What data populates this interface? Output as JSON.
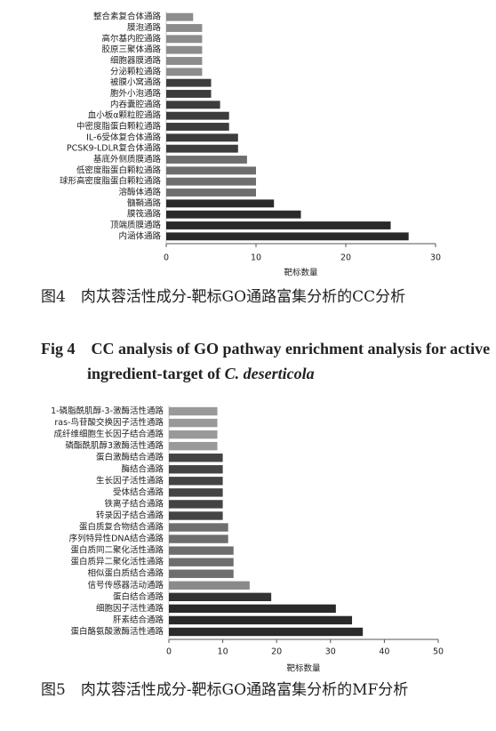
{
  "chart_data": [
    {
      "type": "bar",
      "orientation": "horizontal",
      "categories": [
        "整合素复合体通路",
        "膜泡通路",
        "高尔基内腔通路",
        "胶原三聚体通路",
        "细胞器膜通路",
        "分泌颗粒通路",
        "被膜小窝通路",
        "胞外小泡通路",
        "内吞囊腔通路",
        "血小板α颗粒腔通路",
        "中密度脂蛋白颗粒通路",
        "IL-6受体复合体通路",
        "PCSK9-LDLR复合体通路",
        "基底外侧质膜通路",
        "低密度脂蛋白颗粒通路",
        "球形高密度脂蛋白颗粒通路",
        "溶酶体通路",
        "髓鞘通路",
        "膜筏通路",
        "顶端质膜通路",
        "内涵体通路"
      ],
      "values": [
        3,
        4,
        4,
        4,
        4,
        4,
        5,
        5,
        6,
        7,
        7,
        8,
        8,
        9,
        10,
        10,
        10,
        12,
        15,
        25,
        27
      ],
      "colors": [
        "#8c8c8c",
        "#8c8c8c",
        "#8c8c8c",
        "#8c8c8c",
        "#8c8c8c",
        "#8c8c8c",
        "#3c3c3c",
        "#3c3c3c",
        "#3c3c3c",
        "#3c3c3c",
        "#3c3c3c",
        "#3c3c3c",
        "#3c3c3c",
        "#6e6e6e",
        "#6e6e6e",
        "#6e6e6e",
        "#6e6e6e",
        "#2a2a2a",
        "#2a2a2a",
        "#2a2a2a",
        "#2a2a2a"
      ],
      "xlim": [
        0,
        30
      ],
      "xticks": [
        0,
        10,
        20,
        30
      ],
      "xlabel": "靶标数量",
      "caption": "图4　肉苁蓉活性成分-靶标GO通路富集分析的CC分析",
      "caption_en": "Fig 4　CC analysis of GO pathway enrichment analysis for active ingredient-target of",
      "caption_en_species": "C. deserticola"
    },
    {
      "type": "bar",
      "orientation": "horizontal",
      "categories": [
        "1-磷脂酰肌醇-3-激酶活性通路",
        "ras-鸟苷酸交换因子活性通路",
        "成纤维细胞生长因子结合通路",
        "磷酯酰肌醇3激酶活性通路",
        "蛋白激酶结合通路",
        "酶结合通路",
        "生长因子活性通路",
        "受体结合通路",
        "铁离子结合通路",
        "转录因子结合通路",
        "蛋白质复合物结合通路",
        "序列特异性DNA结合通路",
        "蛋白质同二聚化活性通路",
        "蛋白质异二聚化活性通路",
        "相似蛋白质结合通路",
        "信号传感器活动通路",
        "蛋白结合通路",
        "细胞因子活性通路",
        "肝素结合通路",
        "蛋白酪氨酸激酶活性通路"
      ],
      "values": [
        9,
        9,
        9,
        9,
        10,
        10,
        10,
        10,
        10,
        10,
        11,
        11,
        12,
        12,
        12,
        15,
        19,
        31,
        34,
        36
      ],
      "colors": [
        "#999999",
        "#999999",
        "#999999",
        "#999999",
        "#444444",
        "#444444",
        "#444444",
        "#444444",
        "#444444",
        "#444444",
        "#6e6e6e",
        "#6e6e6e",
        "#6e6e6e",
        "#6e6e6e",
        "#6e6e6e",
        "#8a8a8a",
        "#333333",
        "#2a2a2a",
        "#2a2a2a",
        "#2a2a2a"
      ],
      "xlim": [
        0,
        50
      ],
      "xticks": [
        0,
        10,
        20,
        30,
        40,
        50
      ],
      "xlabel": "靶标数量",
      "caption": "图5　肉苁蓉活性成分-靶标GO通路富集分析的MF分析"
    }
  ]
}
